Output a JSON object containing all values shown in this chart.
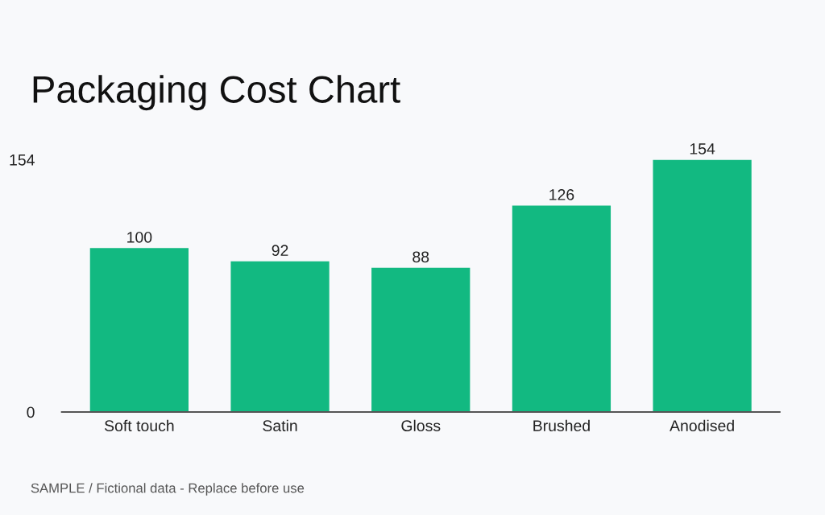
{
  "chart_data": {
    "type": "bar",
    "title": "Packaging Cost Chart",
    "categories": [
      "Soft touch",
      "Satin",
      "Gloss",
      "Brushed",
      "Anodised"
    ],
    "values": [
      100,
      92,
      88,
      126,
      154
    ],
    "color": "#12b981",
    "ylim": [
      0,
      154
    ],
    "yticks": [
      0,
      154
    ],
    "grid": false,
    "data_labels": true,
    "annotations": [
      "SAMPLE / Fictional data - Replace before use"
    ]
  }
}
